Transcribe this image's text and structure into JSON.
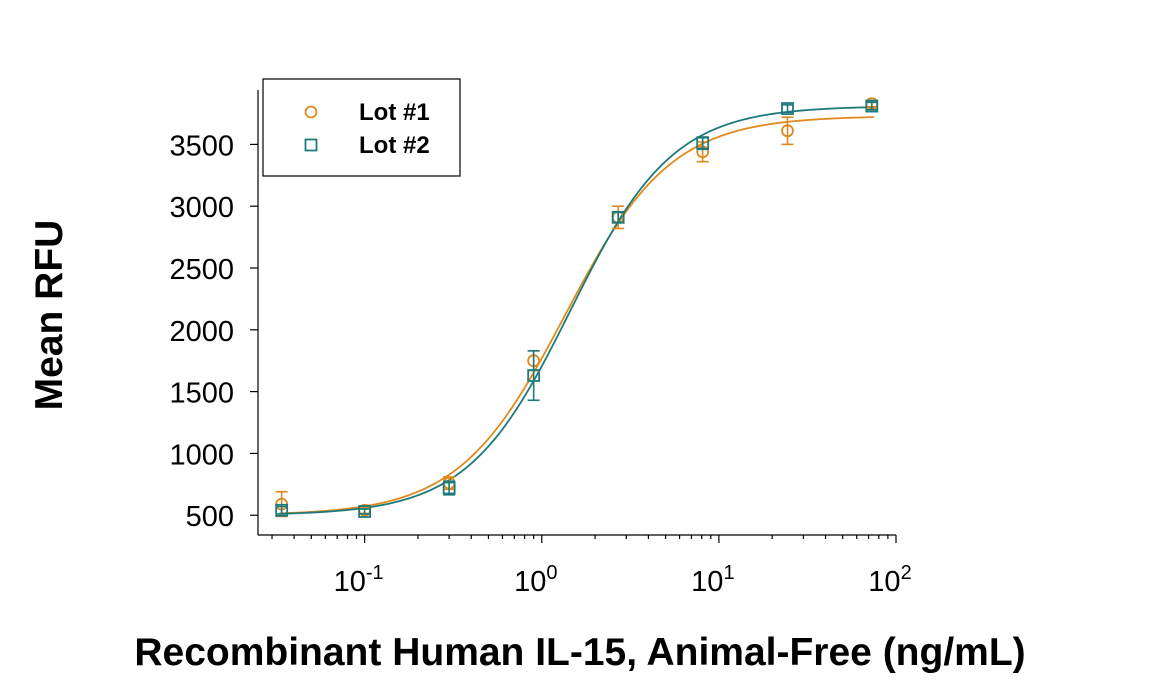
{
  "chart_data": {
    "type": "scatter",
    "xlabel": "Recombinant Human IL-15, Animal-Free (ng/mL)",
    "ylabel": "Mean RFU",
    "x_scale": "log",
    "xlim": [
      0.025,
      100
    ],
    "ylim": [
      340,
      3940
    ],
    "x_ticks": [
      {
        "value": 0.1,
        "base": "10",
        "exp": "-1"
      },
      {
        "value": 1,
        "base": "10",
        "exp": "0"
      },
      {
        "value": 10,
        "base": "10",
        "exp": "1"
      },
      {
        "value": 100,
        "base": "10",
        "exp": "2"
      }
    ],
    "y_ticks": [
      500,
      1000,
      1500,
      2000,
      2500,
      3000,
      3500
    ],
    "grid": false,
    "legend_position": "top-left",
    "series": [
      {
        "name": "Lot #1",
        "color": "#e08a1e",
        "marker": "circle",
        "points": [
          {
            "x": 0.034,
            "y": 590,
            "err": 100
          },
          {
            "x": 0.1,
            "y": 540,
            "err": 25
          },
          {
            "x": 0.3,
            "y": 760,
            "err": 50
          },
          {
            "x": 0.9,
            "y": 1750,
            "err": 80
          },
          {
            "x": 2.7,
            "y": 2910,
            "err": 90
          },
          {
            "x": 8.1,
            "y": 3440,
            "err": 80
          },
          {
            "x": 24.4,
            "y": 3610,
            "err": 110
          },
          {
            "x": 73,
            "y": 3830,
            "err": 25
          }
        ],
        "fit": {
          "bottom": 500,
          "top": 3730,
          "ec50": 1.35,
          "hill": 1.45
        }
      },
      {
        "name": "Lot #2",
        "color": "#1e7a7a",
        "marker": "square",
        "points": [
          {
            "x": 0.034,
            "y": 540,
            "err": 30
          },
          {
            "x": 0.1,
            "y": 530,
            "err": 20
          },
          {
            "x": 0.3,
            "y": 720,
            "err": 55
          },
          {
            "x": 0.9,
            "y": 1630,
            "err": 200
          },
          {
            "x": 2.7,
            "y": 2910,
            "err": 40
          },
          {
            "x": 8.1,
            "y": 3510,
            "err": 50
          },
          {
            "x": 24.4,
            "y": 3790,
            "err": 30
          },
          {
            "x": 73,
            "y": 3810,
            "err": 30
          }
        ],
        "fit": {
          "bottom": 500,
          "top": 3810,
          "ec50": 1.45,
          "hill": 1.5
        }
      }
    ]
  }
}
